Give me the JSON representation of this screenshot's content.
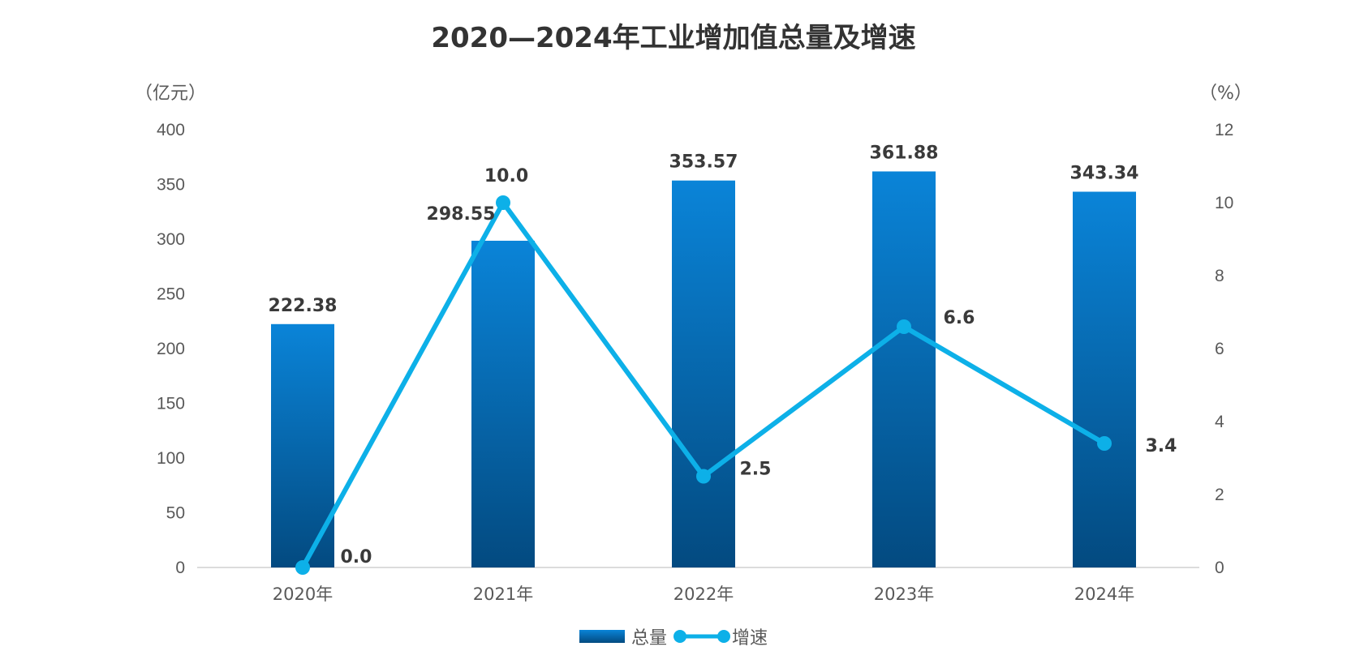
{
  "chart_data": {
    "type": "bar+line",
    "title": "2020—2024年工业增加值总量及增速",
    "categories": [
      "2020年",
      "2021年",
      "2022年",
      "2023年",
      "2024年"
    ],
    "series": [
      {
        "name": "总量",
        "type": "bar",
        "axis": "left",
        "values": [
          222.38,
          298.55,
          353.57,
          361.88,
          343.34
        ],
        "labels": [
          "222.38",
          "298.55",
          "353.57",
          "361.88",
          "343.34"
        ]
      },
      {
        "name": "增速",
        "type": "line",
        "axis": "right",
        "values": [
          0.0,
          10.0,
          2.5,
          6.6,
          3.4
        ],
        "labels": [
          "0.0",
          "10.0",
          "2.5",
          "6.6",
          "3.4"
        ]
      }
    ],
    "y_left": {
      "unit": "（亿元）",
      "range": [
        0,
        400
      ],
      "ticks": [
        "0",
        "50",
        "100",
        "150",
        "200",
        "250",
        "300",
        "350",
        "400"
      ]
    },
    "y_right": {
      "unit": "（%）",
      "range": [
        0,
        12
      ],
      "ticks": [
        "0",
        "2",
        "4",
        "6",
        "8",
        "10",
        "12"
      ]
    },
    "grid": false,
    "legend": "bottom-center",
    "colors": {
      "bar_top": "#0a84d8",
      "bar_bottom": "#034a80",
      "line": "#0db0e8",
      "text": "#595959",
      "axis": "#d0d0d0"
    }
  }
}
